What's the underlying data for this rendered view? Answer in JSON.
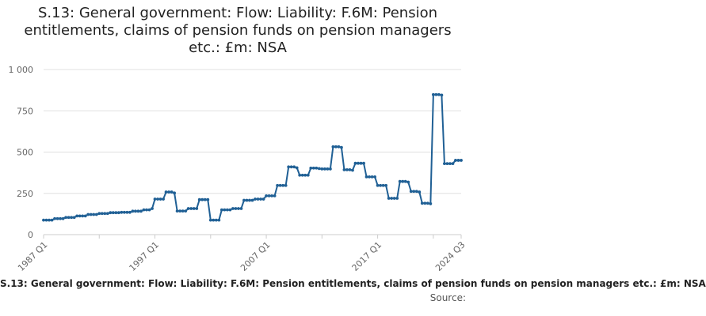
{
  "title": "S.13: General government: Flow: Liability: F.6M: Pension entitlements, claims of pension funds on pension managers etc.: £m: NSA",
  "footer": {
    "series_text": "S.13: General government: Flow: Liability: F.6M: Pension entitlements, claims of pension funds on pension managers etc.: £m: NSA",
    "source_label": "Source:"
  },
  "colors": {
    "line": "#206095",
    "grid": "#e0e0e0",
    "axis": "#cccccc"
  },
  "chart_data": {
    "type": "line",
    "title": "S.13: General government: Flow: Liability: F.6M: Pension entitlements, claims of pension funds on pension managers etc.: £m: NSA",
    "xlabel": "",
    "ylabel": "",
    "ylim": [
      0,
      1000
    ],
    "yticks": [
      0,
      250,
      500,
      750,
      1000
    ],
    "ytick_labels": [
      "0",
      "250",
      "500",
      "750",
      "1 000"
    ],
    "x_ticks_shown": [
      "1987 Q1",
      "1997 Q1",
      "2007 Q1",
      "2017 Q1",
      "2024 Q3"
    ],
    "x_start": "1987 Q1",
    "x_end": "2024 Q3",
    "grid": true,
    "legend": "none",
    "series": [
      {
        "values": [
          88,
          88,
          88,
          88,
          97,
          97,
          97,
          97,
          104,
          104,
          104,
          104,
          113,
          113,
          113,
          113,
          122,
          122,
          122,
          122,
          128,
          128,
          128,
          128,
          133,
          133,
          133,
          133,
          135,
          135,
          135,
          135,
          142,
          142,
          142,
          142,
          150,
          150,
          150,
          158,
          215,
          215,
          215,
          215,
          258,
          258,
          258,
          252,
          143,
          143,
          143,
          143,
          158,
          158,
          158,
          158,
          212,
          212,
          212,
          212,
          88,
          88,
          88,
          88,
          150,
          150,
          150,
          150,
          158,
          158,
          158,
          158,
          208,
          208,
          208,
          208,
          215,
          215,
          215,
          215,
          235,
          235,
          235,
          235,
          298,
          298,
          298,
          298,
          410,
          410,
          410,
          405,
          360,
          360,
          360,
          360,
          403,
          403,
          403,
          400,
          398,
          398,
          398,
          398,
          532,
          532,
          532,
          528,
          393,
          393,
          393,
          390,
          432,
          432,
          432,
          432,
          350,
          350,
          350,
          350,
          298,
          298,
          298,
          298,
          220,
          220,
          220,
          220,
          322,
          322,
          322,
          318,
          262,
          262,
          262,
          258,
          190,
          190,
          190,
          187,
          848,
          848,
          848,
          845,
          430,
          430,
          430,
          430,
          450,
          450,
          450
        ]
      }
    ]
  }
}
